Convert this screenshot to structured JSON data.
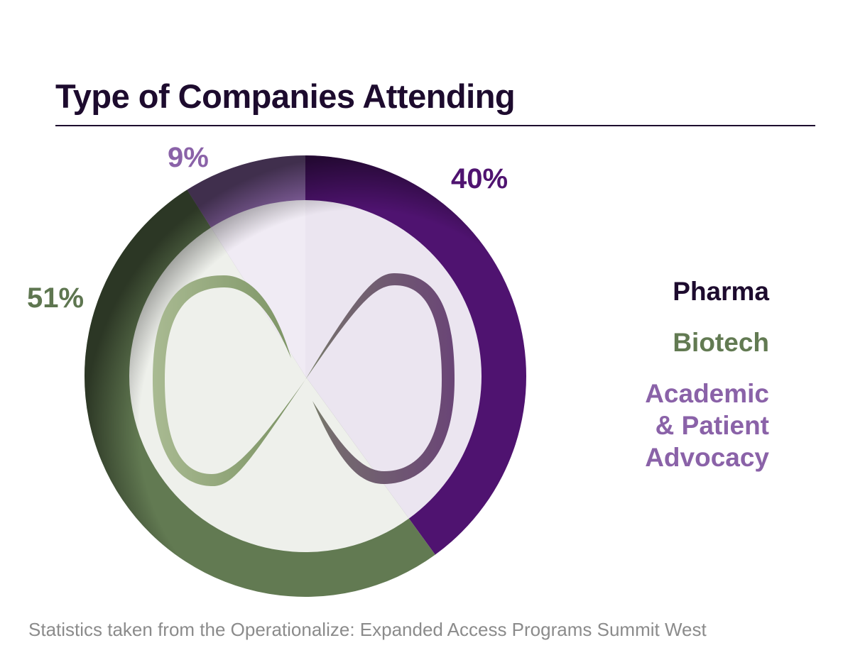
{
  "title": "Type of Companies Attending",
  "footnote": "Statistics taken from the Operationalize: Expanded Access Programs Summit West",
  "chart_data": {
    "type": "pie",
    "title": "Type of Companies Attending",
    "slices": [
      {
        "name": "Pharma",
        "value": 40,
        "label": "40%",
        "color": "#4f1370",
        "inner_color": "#ebe5f0",
        "label_color": "#4f1370"
      },
      {
        "name": "Biotech",
        "value": 51,
        "label": "51%",
        "color": "#627a52",
        "inner_color": "#eef0eb",
        "label_color": "#5e7650"
      },
      {
        "name": "Academic & Patient Advocacy",
        "value": 9,
        "label": "9%",
        "color": "#8e68ab",
        "inner_color": "#f0ebf4",
        "label_color": "#8a62a8"
      }
    ],
    "legend": {
      "placement": "right",
      "items": [
        {
          "lines": [
            "Pharma"
          ],
          "color": "#1d0b2e"
        },
        {
          "lines": [
            "Biotech"
          ],
          "color": "#627a52"
        },
        {
          "lines": [
            "Academic",
            "& Patient",
            "Advocacy"
          ],
          "color": "#8a62a8"
        }
      ]
    }
  }
}
